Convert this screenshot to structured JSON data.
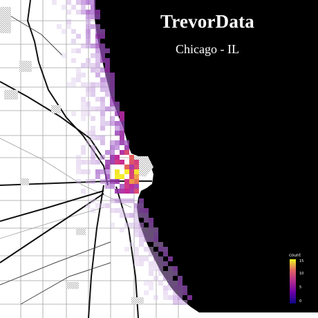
{
  "title": "TrevorData",
  "subtitle": "Chicago - IL",
  "colors": {
    "water": "#000000",
    "land": "#ffffff",
    "road_major": "#111111",
    "road_minor": "#9a9a9a",
    "low": "#e7def0",
    "mid": "#8e2aa6",
    "high": "#f5ee2a"
  },
  "legend": {
    "title": "count",
    "ticks": [
      "15",
      "10",
      "5",
      "0"
    ],
    "max": 15
  }
}
